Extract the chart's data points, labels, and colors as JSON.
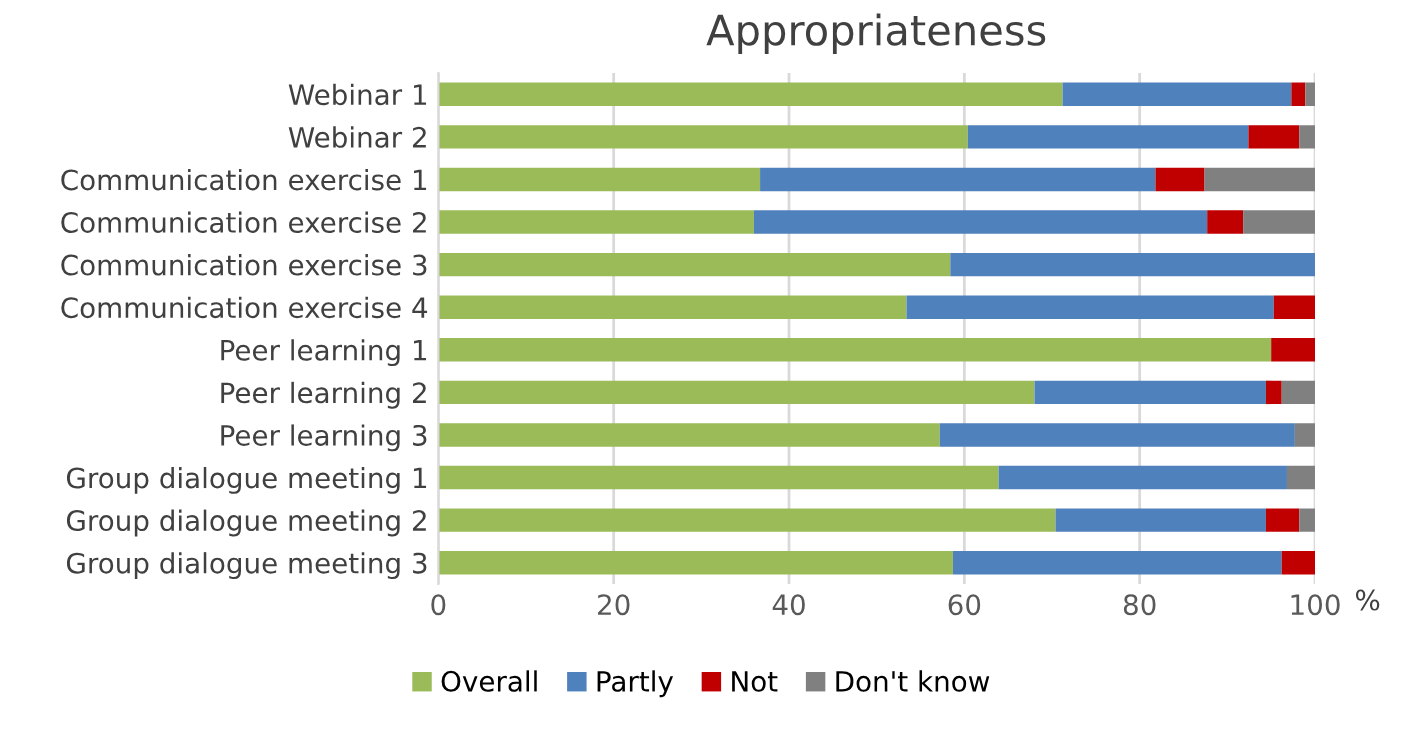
{
  "chart_data": {
    "type": "bar",
    "orientation": "horizontal",
    "stacked": true,
    "title": "Appropriateness",
    "categories": [
      "Webinar 1",
      "Webinar 2",
      "Communication exercise 1",
      "Communication exercise 2",
      "Communication exercise 3",
      "Communication exercise 4",
      "Peer learning 1",
      "Peer learning 2",
      "Peer learning 3",
      "Group dialogue meeting 1",
      "Group dialogue meeting 2",
      "Group dialogue meeting 3"
    ],
    "series": [
      {
        "name": "Overall",
        "color": "#9bbb59",
        "values": [
          71.2,
          60.4,
          36.7,
          36.0,
          58.4,
          53.4,
          95.0,
          68.0,
          57.2,
          63.9,
          70.4,
          58.7
        ]
      },
      {
        "name": "Partly",
        "color": "#4f81bd",
        "values": [
          26.1,
          32.0,
          45.1,
          51.7,
          41.6,
          41.9,
          0,
          26.4,
          40.5,
          32.9,
          24.0,
          37.5
        ]
      },
      {
        "name": "Not",
        "color": "#c00000",
        "values": [
          1.6,
          5.8,
          5.6,
          4.1,
          0,
          4.7,
          5.0,
          1.8,
          0,
          0,
          3.8,
          3.8
        ]
      },
      {
        "name": "Don't know",
        "color": "#808080",
        "values": [
          1.1,
          1.8,
          12.6,
          8.2,
          0,
          0,
          0,
          3.8,
          2.3,
          3.2,
          1.8,
          0
        ]
      }
    ],
    "xlim": [
      0,
      100
    ],
    "xticks": [
      0,
      20,
      40,
      60,
      80,
      100
    ],
    "xlabel": "%",
    "grid": "x",
    "legend": "bottom"
  }
}
